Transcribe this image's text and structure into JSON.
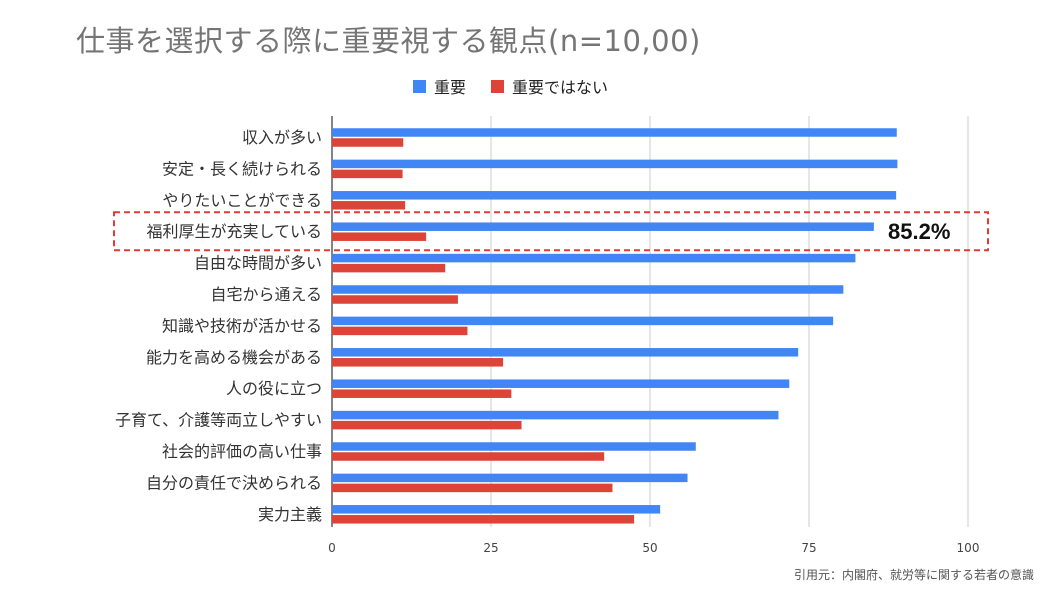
{
  "chart_data": {
    "type": "bar",
    "orientation": "horizontal",
    "title": "仕事を選択する際に重要視する観点(n=10,00)",
    "categories": [
      "収入が多い",
      "安定・長く続けられる",
      "やりたいことができる",
      "福利厚生が充実している",
      "自由な時間が多い",
      "自宅から通える",
      "知識や技術が活かせる",
      "能力を高める機会がある",
      "人の役に立つ",
      "子育て、介護等両立しやすい",
      "社会的評価の高い仕事",
      "自分の責任で決められる",
      "実力主義"
    ],
    "series": [
      {
        "name": "重要",
        "color": "#4285f4",
        "values": [
          88.8,
          88.9,
          88.7,
          85.2,
          82.3,
          80.4,
          78.8,
          73.3,
          71.9,
          70.2,
          57.2,
          55.9,
          51.6
        ]
      },
      {
        "name": "重要ではない",
        "color": "#db4437",
        "values": [
          11.2,
          11.1,
          11.5,
          14.8,
          17.8,
          19.8,
          21.3,
          26.9,
          28.2,
          29.8,
          42.8,
          44.1,
          47.5
        ]
      }
    ],
    "xlim": [
      0,
      100
    ],
    "xticks": [
      0,
      25,
      50,
      75,
      100
    ],
    "grid": true,
    "legend_position": "top-center",
    "highlight": {
      "category": "福利厚生が充実している",
      "label": "85.2%",
      "box_color": "#e53935"
    }
  },
  "source_note": "引用元：内閣府、就労等に関する若者の意識"
}
